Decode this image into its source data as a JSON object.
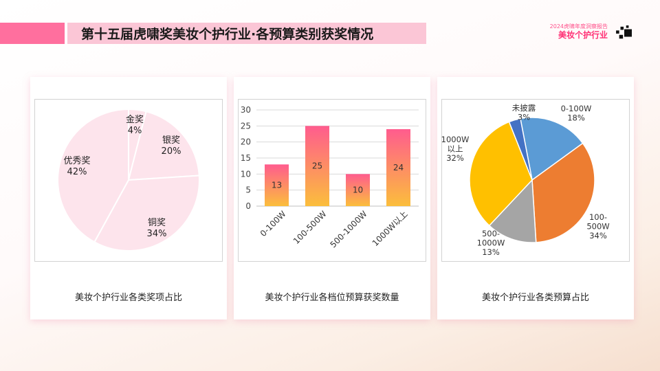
{
  "header": {
    "title": "第十五届虎啸奖美妆个护行业·各预算类别获奖情况",
    "brand_sub": "2024虎啸年度洞察报告",
    "brand_main": "美妆个护行业"
  },
  "colors": {
    "accent_pink": "#ff6f9e",
    "title_bg": "#fbc6d6",
    "pie_fill": "#fde4ec"
  },
  "chart_data": [
    {
      "type": "pie",
      "caption": "美妆个护行业各类奖项占比",
      "slices": [
        {
          "label": "金奖",
          "value": 4,
          "pct": "4%"
        },
        {
          "label": "银奖",
          "value": 20,
          "pct": "20%"
        },
        {
          "label": "铜奖",
          "value": 34,
          "pct": "34%"
        },
        {
          "label": "优秀奖",
          "value": 42,
          "pct": "42%"
        }
      ],
      "color": "#fde4ec"
    },
    {
      "type": "bar",
      "caption": "美妆个护行业各档位预算获奖数量",
      "categories": [
        "0-100W",
        "100-500W",
        "500-1000W",
        "1000W以上"
      ],
      "values": [
        13,
        25,
        10,
        24
      ],
      "ylim": [
        0,
        30
      ],
      "yticks": [
        0,
        5,
        10,
        15,
        20,
        25,
        30
      ],
      "grid": true,
      "gradient": [
        "#ff5c8e",
        "#fbbe3c"
      ]
    },
    {
      "type": "pie",
      "caption": "美妆个护行业各类预算占比",
      "slices": [
        {
          "label": "0-100W",
          "value": 18,
          "pct": "18%",
          "color": "#5b9bd5"
        },
        {
          "label": "100-500W",
          "value": 34,
          "pct": "34%",
          "color": "#ed7d31"
        },
        {
          "label": "500-1000W",
          "value": 13,
          "pct": "13%",
          "color": "#a5a5a5"
        },
        {
          "label": "1000W以上",
          "value": 32,
          "pct": "32%",
          "color": "#ffc000"
        },
        {
          "label": "未披露",
          "value": 3,
          "pct": "3%",
          "color": "#4472c4"
        }
      ]
    }
  ]
}
